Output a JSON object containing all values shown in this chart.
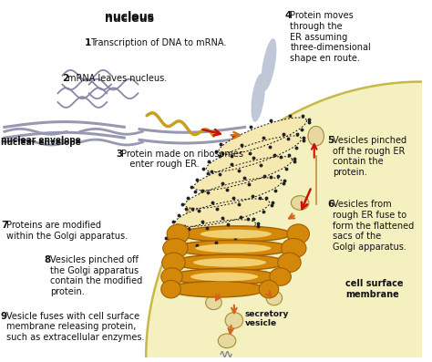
{
  "bg_color": "#ffffff",
  "cell_bg_color": "#f5f0c0",
  "cell_border_color": "#c8b84a",
  "golgi_fill": "#d4880a",
  "golgi_edge": "#a06000",
  "er_fill": "#f5e8b0",
  "er_dot": "#111111",
  "nuc_env_color": "#9898b0",
  "mrna_color": "#c8a020",
  "arrow_red": "#cc1100",
  "arrow_orange": "#d86020",
  "vesicle_fill": "#e8d8a0",
  "vesicle_edge": "#a09030",
  "text_color": "#111111",
  "labels": {
    "nucleus": "nucleus",
    "nuclear_envelope": "nuclear envelope",
    "secretory_vesicle": "secretory\nvesicle",
    "cell_surface_membrane": "cell surface\nmembrane",
    "step1": " Transcription of DNA to mRNA.",
    "step2": " mRNA leaves nucleus.",
    "step3": " Protein made on ribosomes\n   enter rough ER.",
    "step4": " Protein moves\nthrough the\nER assuming\nthree-dimensional\nshape en route.",
    "step5": " Vesicles pinched\noff the rough ER\ncontain the\nprotein.",
    "step6": " Vesicles from\nrough ER fuse to\nform the flattened\nsacs of the\nGolgi apparatus.",
    "step7": " Proteins are modified\nwithin the Golgi apparatus.",
    "step8": " Vesicles pinched off\nthe Golgi apparatus\ncontain the modified\nprotein.",
    "step9": " Vesicle fuses with cell surface\nmembrane releasing protein,\nsuch as extracellular enzymes."
  },
  "step_nums": [
    "1",
    "2",
    "3",
    "4",
    "5",
    "6",
    "7",
    "8",
    "9"
  ]
}
